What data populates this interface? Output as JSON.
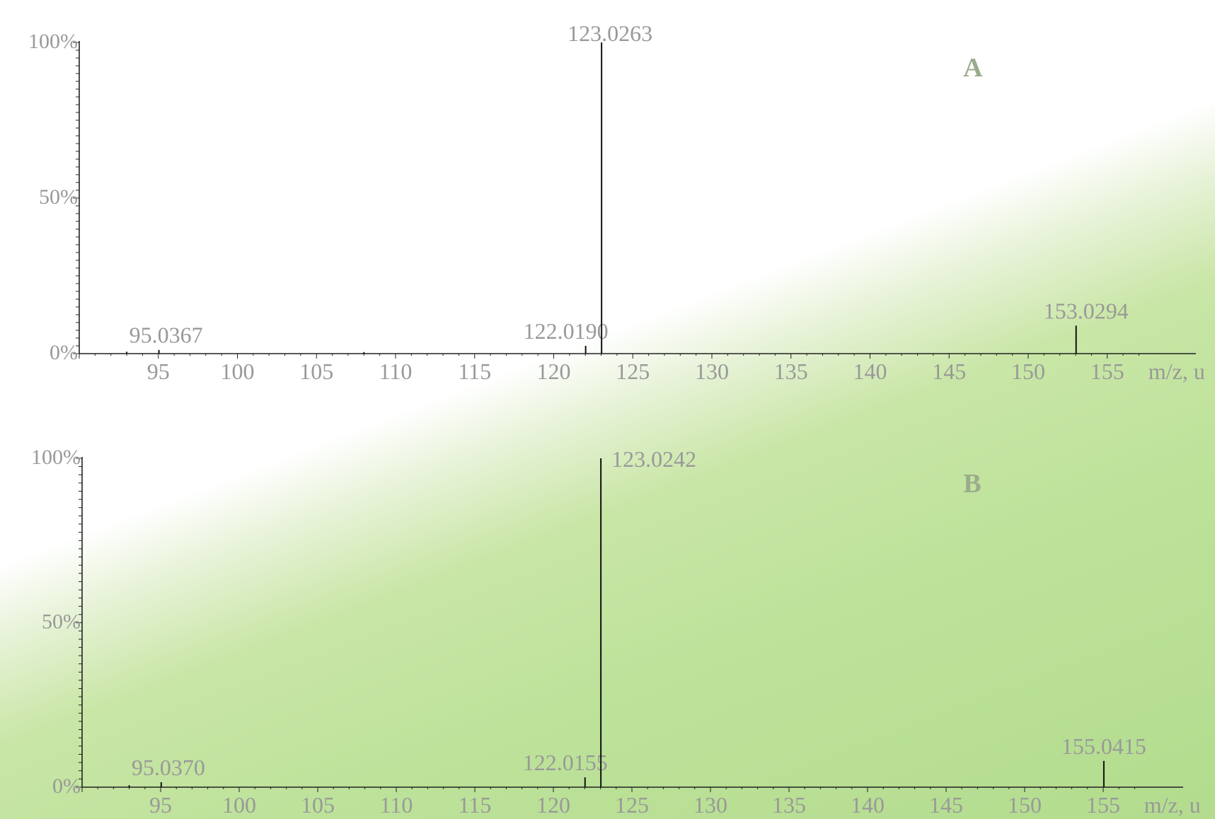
{
  "chart_data": [
    {
      "type": "bar",
      "panel_label": "A",
      "xlabel": "m/z, u",
      "xlim": [
        90,
        157
      ],
      "ylim": [
        0,
        100
      ],
      "x_ticks": [
        "95",
        "100",
        "105",
        "110",
        "115",
        "120",
        "125",
        "130",
        "135",
        "140",
        "145",
        "150",
        "155"
      ],
      "y_ticks": [
        "0%",
        "50%",
        "100%"
      ],
      "peaks": [
        {
          "mz": 93.0,
          "intensity": 0.6,
          "label": ""
        },
        {
          "mz": 95.0367,
          "intensity": 1.2,
          "label": "95.0367"
        },
        {
          "mz": 108.0,
          "intensity": 0.5,
          "label": ""
        },
        {
          "mz": 122.019,
          "intensity": 2.5,
          "label": "122.0190"
        },
        {
          "mz": 123.0263,
          "intensity": 100,
          "label": "123.0263"
        },
        {
          "mz": 153.0294,
          "intensity": 9,
          "label": "153.0294"
        }
      ]
    },
    {
      "type": "bar",
      "panel_label": "B",
      "xlabel": "m/z, u",
      "xlim": [
        90,
        157
      ],
      "ylim": [
        0,
        100
      ],
      "x_ticks": [
        "95",
        "100",
        "105",
        "110",
        "115",
        "120",
        "125",
        "130",
        "135",
        "140",
        "145",
        "150",
        "155"
      ],
      "y_ticks": [
        "0%",
        "50%",
        "100%"
      ],
      "peaks": [
        {
          "mz": 93.0,
          "intensity": 0.6,
          "label": ""
        },
        {
          "mz": 95.037,
          "intensity": 1.5,
          "label": "95.0370"
        },
        {
          "mz": 122.0155,
          "intensity": 3,
          "label": "122.0155"
        },
        {
          "mz": 123.0242,
          "intensity": 100,
          "label": "123.0242"
        },
        {
          "mz": 155.0415,
          "intensity": 8,
          "label": "155.0415"
        }
      ]
    }
  ],
  "colors": {
    "text": "#999999",
    "panel_label": "#9bab8c",
    "axis": "#222222",
    "peak": "#111111"
  }
}
